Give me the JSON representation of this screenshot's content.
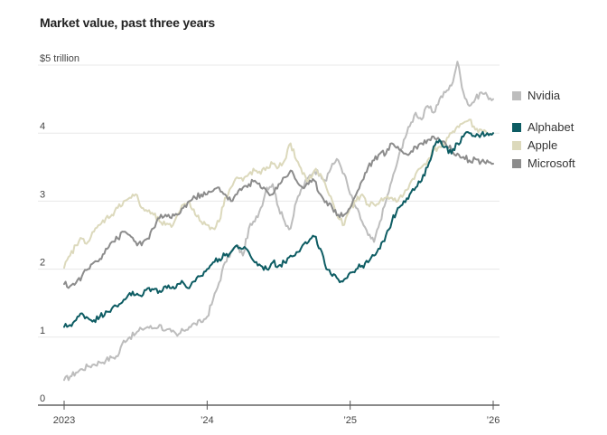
{
  "chart_data": {
    "type": "line",
    "title": "Market value, past three years",
    "ylabel": "$5 trillion",
    "ylim": [
      0,
      5
    ],
    "yticks": [
      {
        "value": 0,
        "label": "0"
      },
      {
        "value": 1,
        "label": "1"
      },
      {
        "value": 2,
        "label": "2"
      },
      {
        "value": 3,
        "label": "3"
      },
      {
        "value": 4,
        "label": "4"
      },
      {
        "value": 5,
        "label": "$5 trillion"
      }
    ],
    "xlim": [
      2023.0,
      2026.04
    ],
    "xticks": [
      {
        "value": 2023,
        "label": "2023"
      },
      {
        "value": 2024,
        "label": "’24"
      },
      {
        "value": 2025,
        "label": "’25"
      },
      {
        "value": 2026,
        "label": "’26"
      }
    ],
    "grid": true,
    "legend_position": "right",
    "x_start": 2023.0,
    "x_step_years": 0.04166667,
    "series": [
      {
        "name": "Nvidia",
        "color": "#bdbdbd",
        "values": [
          0.37,
          0.42,
          0.48,
          0.53,
          0.57,
          0.6,
          0.63,
          0.66,
          0.7,
          0.72,
          0.95,
          1.0,
          1.05,
          1.12,
          1.15,
          1.13,
          1.18,
          1.1,
          1.08,
          1.02,
          1.1,
          1.15,
          1.2,
          1.22,
          1.3,
          1.55,
          1.8,
          2.1,
          2.25,
          2.35,
          2.2,
          2.6,
          2.7,
          2.9,
          3.2,
          3.25,
          2.9,
          2.7,
          2.6,
          3.0,
          3.2,
          3.35,
          3.45,
          3.4,
          3.3,
          3.55,
          3.6,
          3.4,
          3.1,
          2.9,
          2.7,
          2.5,
          2.4,
          2.7,
          3.0,
          3.3,
          3.6,
          3.9,
          4.1,
          4.3,
          4.2,
          4.4,
          4.3,
          4.5,
          4.6,
          4.7,
          5.05,
          4.6,
          4.4,
          4.5,
          4.6,
          4.55,
          4.5
        ]
      },
      {
        "name": "Alphabet",
        "color": "#0d5c63",
        "values": [
          1.15,
          1.18,
          1.25,
          1.35,
          1.28,
          1.25,
          1.3,
          1.38,
          1.42,
          1.45,
          1.55,
          1.65,
          1.62,
          1.6,
          1.72,
          1.7,
          1.68,
          1.75,
          1.72,
          1.78,
          1.8,
          1.72,
          1.82,
          1.9,
          2.0,
          2.1,
          2.15,
          2.2,
          2.25,
          2.35,
          2.3,
          2.25,
          2.1,
          2.05,
          2.0,
          2.1,
          2.05,
          2.1,
          2.2,
          2.25,
          2.35,
          2.4,
          2.48,
          2.3,
          2.0,
          1.9,
          1.85,
          1.85,
          1.95,
          2.0,
          2.05,
          2.1,
          2.2,
          2.3,
          2.5,
          2.7,
          2.9,
          3.0,
          3.1,
          3.2,
          3.3,
          3.5,
          3.8,
          3.9,
          3.8,
          3.7,
          3.85,
          3.95,
          4.0,
          3.95,
          3.98,
          4.0,
          4.0
        ]
      },
      {
        "name": "Apple",
        "color": "#dcd9bc",
        "values": [
          2.02,
          2.2,
          2.35,
          2.45,
          2.4,
          2.55,
          2.65,
          2.75,
          2.8,
          2.9,
          3.0,
          3.05,
          3.1,
          2.9,
          2.85,
          2.8,
          2.7,
          2.65,
          2.62,
          2.8,
          2.95,
          3.0,
          2.8,
          2.7,
          2.65,
          2.6,
          2.7,
          3.05,
          3.2,
          3.35,
          3.3,
          3.4,
          3.45,
          3.4,
          3.5,
          3.55,
          3.5,
          3.6,
          3.85,
          3.6,
          3.4,
          3.3,
          3.45,
          3.4,
          3.2,
          3.0,
          2.75,
          2.65,
          2.9,
          3.0,
          3.1,
          2.95,
          2.95,
          3.0,
          3.05,
          3.05,
          3.0,
          3.1,
          3.25,
          3.4,
          3.5,
          3.6,
          3.75,
          3.8,
          3.85,
          4.0,
          4.1,
          4.15,
          4.2,
          4.05,
          4.05,
          4.0,
          4.0
        ]
      },
      {
        "name": "Microsoft",
        "color": "#8c8c8c",
        "values": [
          1.78,
          1.75,
          1.8,
          1.9,
          2.0,
          2.1,
          2.15,
          2.3,
          2.4,
          2.45,
          2.55,
          2.5,
          2.4,
          2.35,
          2.45,
          2.6,
          2.75,
          2.8,
          2.75,
          2.8,
          2.9,
          3.0,
          3.05,
          3.1,
          3.1,
          3.15,
          3.2,
          3.1,
          3.0,
          3.1,
          3.2,
          3.25,
          3.3,
          3.2,
          3.15,
          3.1,
          3.25,
          3.35,
          3.45,
          3.3,
          3.2,
          3.25,
          3.3,
          3.1,
          3.0,
          2.9,
          2.8,
          2.8,
          2.9,
          3.1,
          3.3,
          3.5,
          3.6,
          3.7,
          3.7,
          3.85,
          3.8,
          3.7,
          3.7,
          3.8,
          3.85,
          3.9,
          3.95,
          3.9,
          3.85,
          3.75,
          3.7,
          3.65,
          3.6,
          3.62,
          3.58,
          3.6,
          3.55
        ]
      }
    ]
  }
}
